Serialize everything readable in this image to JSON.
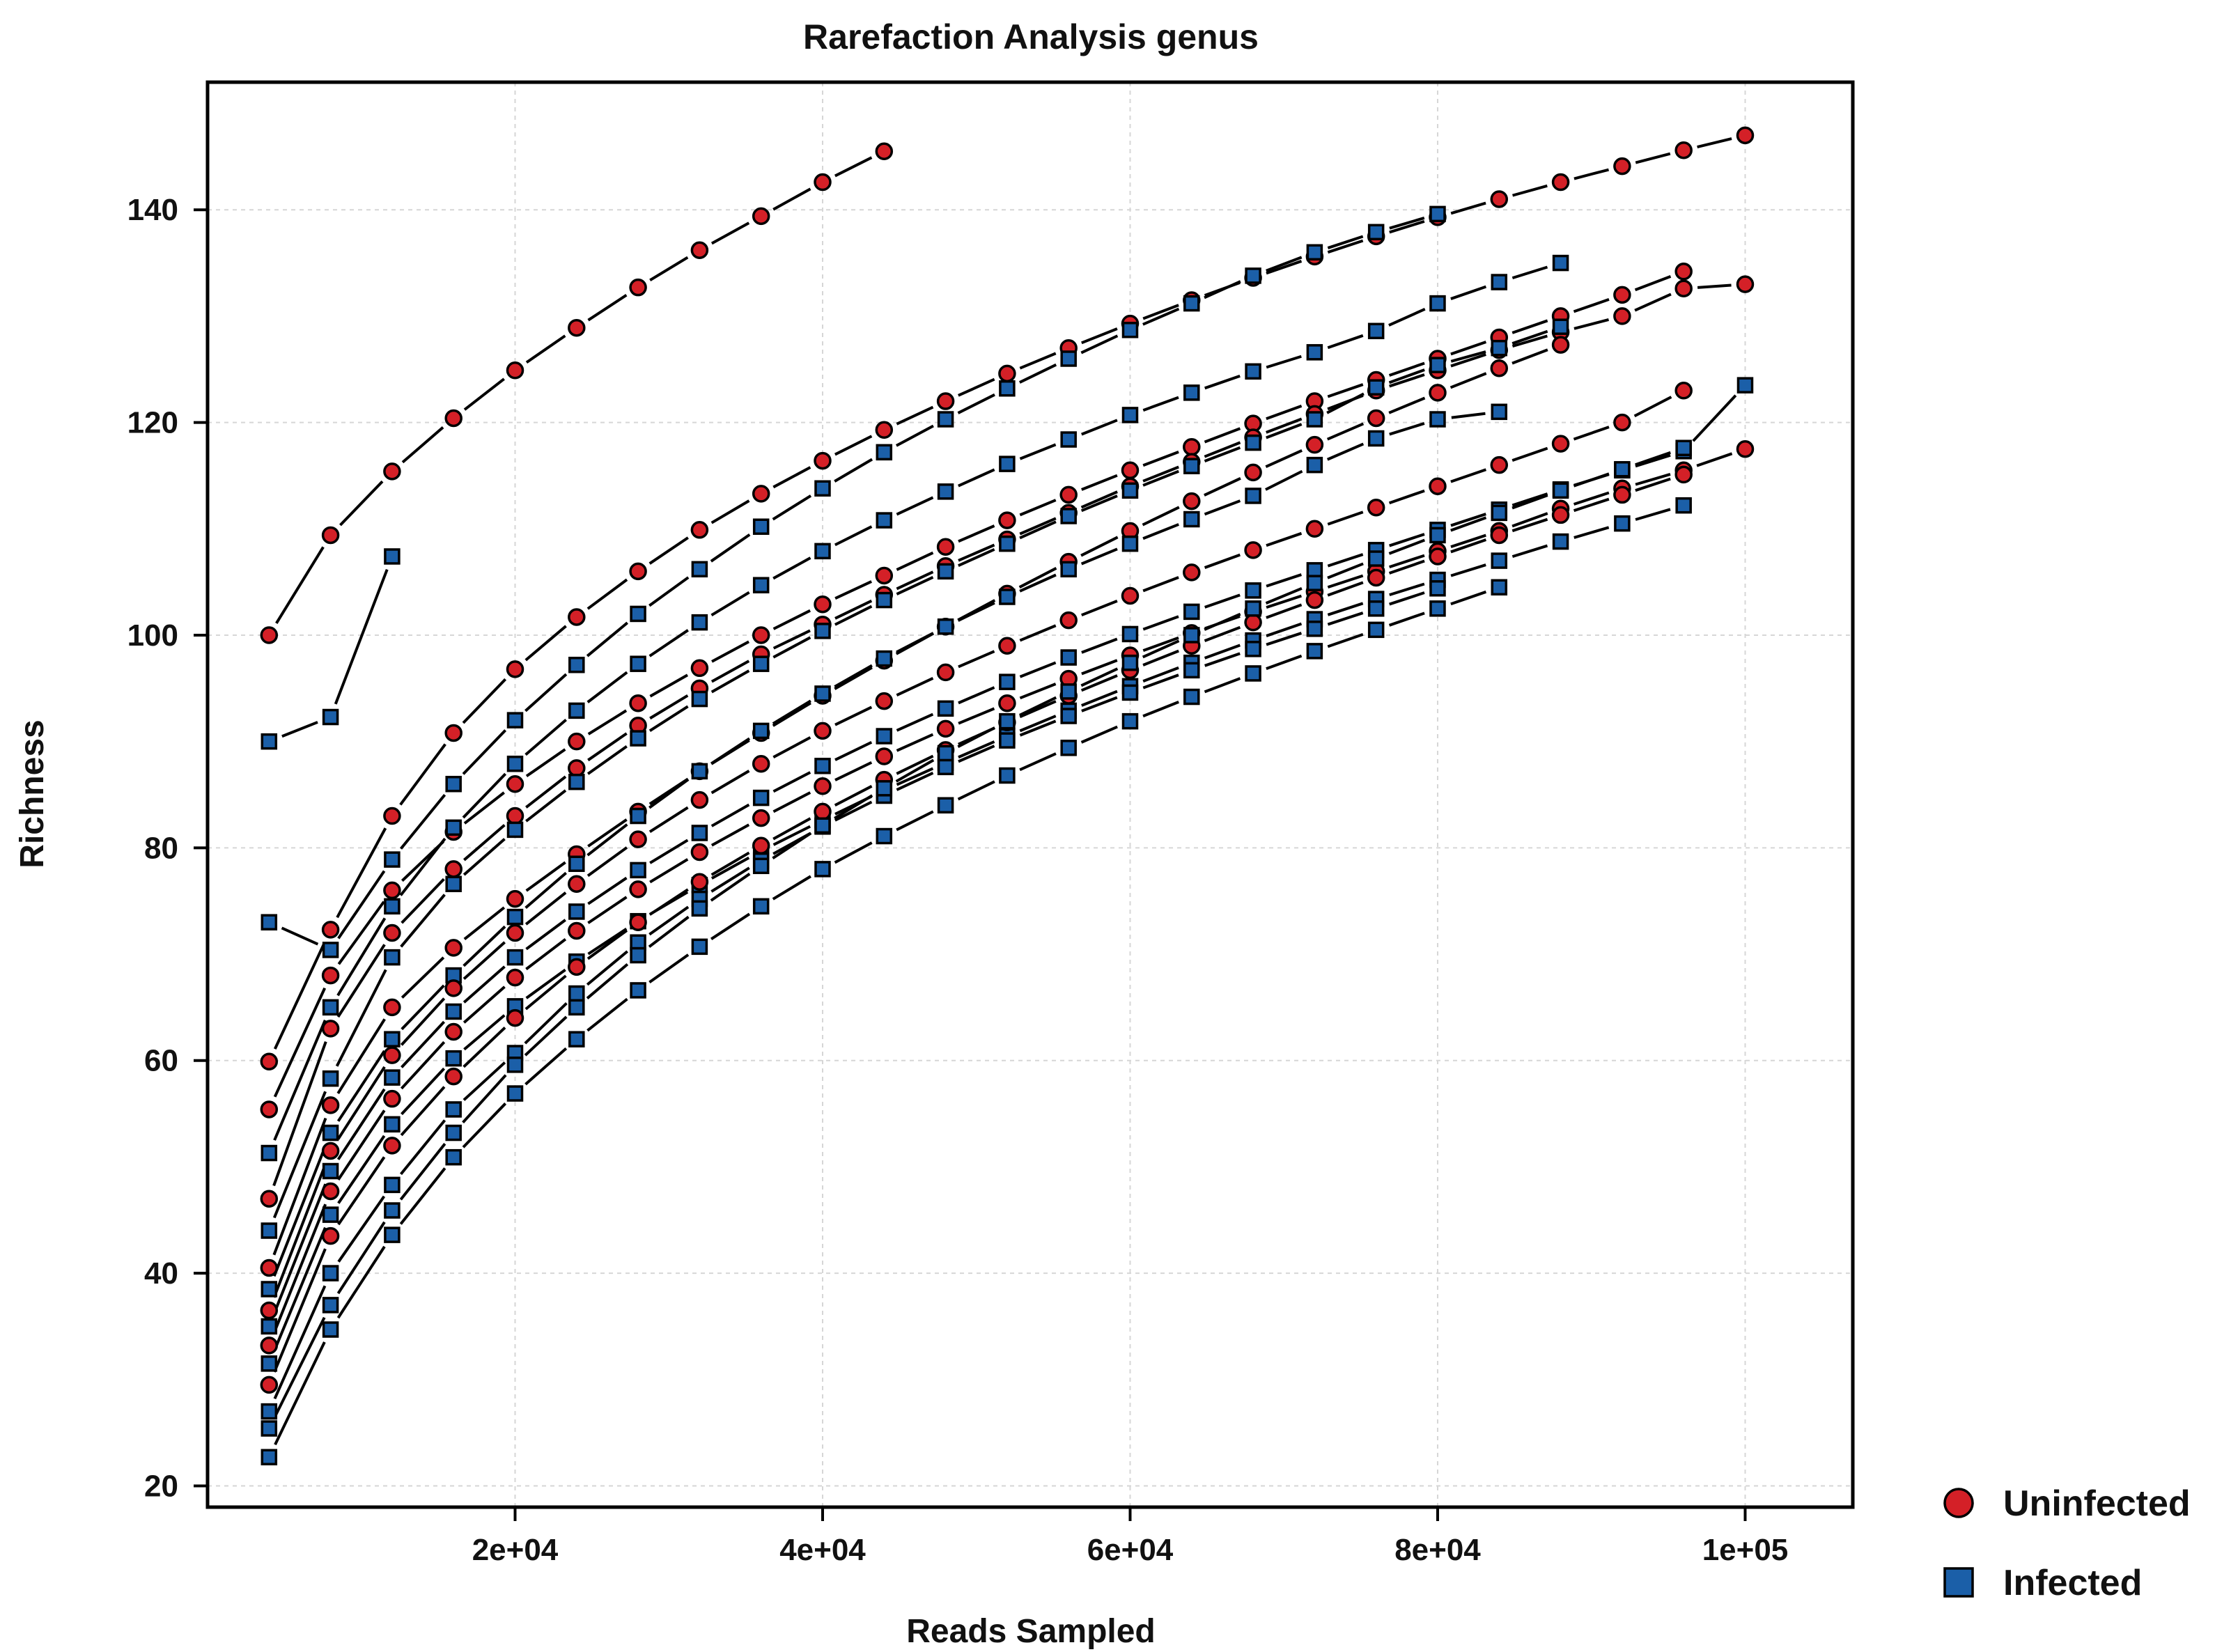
{
  "chart_data": {
    "type": "line",
    "title": "Rarefaction Analysis genus",
    "xlabel": "Reads Sampled",
    "ylabel": "Richness",
    "xlim": [
      0,
      107000
    ],
    "ylim": [
      18,
      152
    ],
    "xticks": [
      20000,
      40000,
      60000,
      80000,
      100000
    ],
    "xtick_labels": [
      "2e+04",
      "4e+04",
      "6e+04",
      "8e+04",
      "1e+05"
    ],
    "yticks": [
      20,
      40,
      60,
      80,
      100,
      120,
      140
    ],
    "ytick_labels": [
      "20",
      "40",
      "60",
      "80",
      "100",
      "120",
      "140"
    ],
    "grid": true,
    "legend": {
      "position": "right-bottom",
      "entries": [
        {
          "label": "Uninfected",
          "marker": "circle",
          "color": "#d42027"
        },
        {
          "label": "Infected",
          "marker": "square",
          "color": "#1b5fa8"
        }
      ]
    },
    "x_step": 4000,
    "series": [
      {
        "group": "Uninfected",
        "values": [
          100.0,
          109.4,
          115.4,
          120.4,
          124.9,
          128.9,
          132.7,
          136.2,
          139.4,
          142.6,
          145.5
        ]
      },
      {
        "group": "Uninfected",
        "values": [
          59.9,
          72.3,
          83.0,
          90.8,
          96.8,
          101.7,
          106.0,
          109.9,
          113.3,
          116.4,
          119.3,
          122.0,
          124.6,
          127.0,
          129.3,
          131.5,
          133.6,
          135.6,
          137.5,
          139.3,
          141.0,
          142.6,
          144.1,
          145.6,
          147.0
        ]
      },
      {
        "group": "Infected",
        "values": [
          90.0,
          92.3,
          107.4
        ]
      },
      {
        "group": "Infected",
        "values": [
          73.0,
          70.4,
          78.9,
          86.0,
          92.0,
          97.2,
          102.0,
          106.2,
          110.2,
          113.8,
          117.2,
          120.3,
          123.2,
          126.0,
          128.7,
          131.2,
          133.8,
          136.0,
          137.9,
          139.6
        ]
      },
      {
        "group": "Uninfected",
        "values": [
          55.4,
          68.0,
          76.0,
          81.5,
          86.0,
          90.0,
          93.6,
          96.9,
          100.0,
          102.9,
          105.6,
          108.3,
          110.8,
          113.2,
          115.5,
          117.7,
          119.9,
          122.0,
          124.0,
          126.0,
          128.0,
          130.0,
          132.0,
          134.2
        ]
      },
      {
        "group": "Infected",
        "values": [
          51.3,
          65.0,
          74.5,
          81.9,
          87.9,
          92.9,
          97.3,
          101.2,
          104.7,
          107.9,
          110.8,
          113.5,
          116.1,
          118.4,
          120.7,
          122.8,
          124.8,
          126.6,
          128.6,
          131.2,
          133.2,
          135.0
        ]
      },
      {
        "group": "Uninfected",
        "values": [
          47.0,
          63.0,
          72.0,
          78.0,
          83.0,
          87.5,
          91.5,
          95.0,
          98.2,
          101.0,
          103.8,
          106.5,
          109.0,
          111.5,
          114.0,
          116.3,
          118.6,
          120.8,
          123.0,
          124.9,
          126.8,
          128.5,
          130.0,
          132.6,
          133.0
        ]
      },
      {
        "group": "Infected",
        "values": [
          44.0,
          58.3,
          69.7,
          76.6,
          81.7,
          86.2,
          90.3,
          94.0,
          97.3,
          100.4,
          103.3,
          106.0,
          108.6,
          111.2,
          113.6,
          115.9,
          118.1,
          120.3,
          123.3,
          125.4,
          127.0,
          129.0
        ]
      },
      {
        "group": "Uninfected",
        "values": [
          40.5,
          55.8,
          65.0,
          70.6,
          75.2,
          79.4,
          83.4,
          87.2,
          90.8,
          94.3,
          97.6,
          100.8,
          103.9,
          106.9,
          109.8,
          112.6,
          115.3,
          117.9,
          120.4,
          122.8,
          125.1,
          127.3
        ]
      },
      {
        "group": "Infected",
        "values": [
          38.5,
          53.2,
          62.0,
          68.0,
          73.5,
          78.5,
          83.0,
          87.2,
          91.0,
          94.5,
          97.8,
          100.8,
          103.6,
          106.2,
          108.6,
          110.9,
          113.1,
          116.0,
          118.5,
          120.3,
          121.0
        ]
      },
      {
        "group": "Uninfected",
        "values": [
          36.5,
          51.5,
          60.5,
          66.8,
          72.0,
          76.6,
          80.8,
          84.5,
          87.9,
          91.0,
          93.8,
          96.5,
          99.0,
          101.4,
          103.7,
          105.9,
          108.0,
          110.0,
          112.0,
          114.0,
          116.0,
          118.0,
          120.0,
          123.0
        ]
      },
      {
        "group": "Infected",
        "values": [
          35.0,
          49.6,
          58.4,
          64.6,
          69.7,
          74.0,
          77.9,
          81.4,
          84.7,
          87.7,
          90.5,
          93.1,
          95.6,
          97.9,
          100.1,
          102.2,
          104.2,
          106.1,
          108.0,
          109.9,
          111.8,
          113.7,
          115.5,
          117.3,
          123.5
        ]
      },
      {
        "group": "Uninfected",
        "values": [
          33.2,
          47.7,
          56.4,
          62.7,
          67.8,
          72.2,
          76.1,
          79.6,
          82.8,
          85.8,
          88.6,
          91.2,
          93.6,
          95.9,
          98.1,
          100.2,
          102.2,
          104.1,
          106.0,
          107.9,
          109.8,
          111.9,
          113.8,
          115.5,
          117.5
        ]
      },
      {
        "group": "Infected",
        "values": [
          31.5,
          45.5,
          54.0,
          60.2,
          65.1,
          69.3,
          73.1,
          76.5,
          79.7,
          82.6,
          85.4,
          88.0,
          90.5,
          92.9,
          95.2,
          97.4,
          99.5,
          101.5,
          103.4,
          105.2,
          107.0,
          108.8,
          110.5,
          112.2
        ]
      },
      {
        "group": "Uninfected",
        "values": [
          29.5,
          43.5,
          52.0,
          58.5,
          64.0,
          68.8,
          73.0,
          76.8,
          80.2,
          83.4,
          86.4,
          89.2,
          91.8,
          94.3,
          96.7,
          99.0,
          101.2,
          103.3,
          105.4,
          107.4,
          109.4,
          111.3,
          113.2,
          115.1
        ]
      },
      {
        "group": "Infected",
        "values": [
          27.0,
          40.0,
          48.3,
          55.4,
          60.7,
          66.3,
          71.1,
          75.2,
          78.8,
          82.0,
          84.9,
          87.6,
          90.1,
          92.4,
          94.6,
          96.7,
          98.7,
          100.6,
          102.5,
          104.4
        ]
      },
      {
        "group": "Infected",
        "values": [
          25.4,
          37.0,
          45.9,
          53.2,
          59.6,
          65.0,
          69.9,
          74.3,
          78.3,
          82.1,
          85.6,
          88.9,
          91.9,
          94.7,
          97.4,
          100.0,
          102.5,
          104.9,
          107.2,
          109.4,
          111.5,
          113.6,
          115.6,
          117.6
        ]
      },
      {
        "group": "Infected",
        "values": [
          22.7,
          34.7,
          43.6,
          50.9,
          56.9,
          62.0,
          66.6,
          70.7,
          74.5,
          78.0,
          81.1,
          84.0,
          86.8,
          89.4,
          91.9,
          94.2,
          96.4,
          98.5,
          100.5,
          102.5,
          104.5
        ]
      }
    ]
  }
}
